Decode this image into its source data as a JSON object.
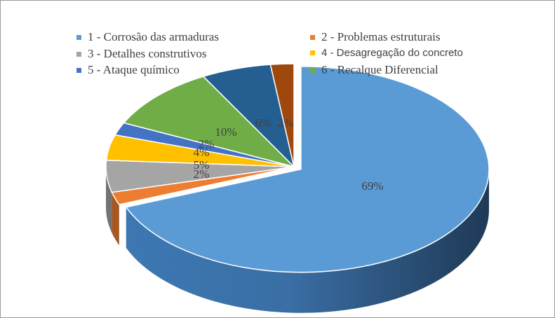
{
  "chart_data": {
    "type": "pie",
    "style": "3d",
    "title": "",
    "legend_position": "top",
    "slices": [
      {
        "label": "1 - Corrosão das armaduras",
        "value": 69,
        "display": "69%",
        "color": "#5b9bd5"
      },
      {
        "label": "2 - Problemas estruturais",
        "value": 2,
        "display": "2%",
        "color": "#ed7d31"
      },
      {
        "label": "3 - Detalhes construtivos",
        "value": 5,
        "display": "5%",
        "color": "#a5a5a5"
      },
      {
        "label": "4 - Desagregação do concreto",
        "value": 4,
        "display": "4%",
        "color": "#ffc000"
      },
      {
        "label": "5 - Ataque químico",
        "value": 2,
        "display": "2%",
        "color": "#4472c4"
      },
      {
        "label": "6 - Recalque Diferencial",
        "value": 10,
        "display": "10%",
        "color": "#70ad47"
      },
      {
        "label": "",
        "value": 6,
        "display": "6%",
        "color": "#255e91"
      },
      {
        "label": "",
        "value": 2,
        "display": "2%",
        "color": "#9e480e"
      }
    ]
  }
}
